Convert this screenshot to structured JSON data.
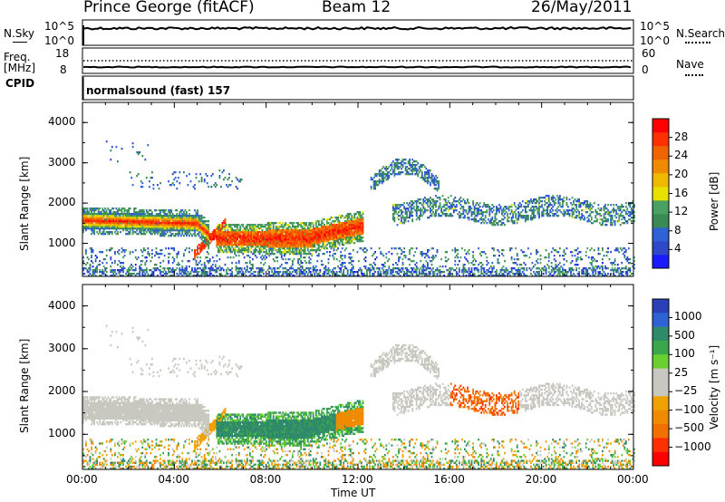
{
  "header": {
    "station": "Prince George (fitACF)",
    "beam": "Beam 12",
    "date": "26/May/2011"
  },
  "nsky_panel": {
    "left_label": "N.Sky",
    "left_ticks": [
      "10^5",
      "10^0"
    ],
    "right_label": "N.Search",
    "right_ticks": [
      "10^5",
      "10^0"
    ]
  },
  "freq_panel": {
    "left_label_1": "Freq.",
    "left_label_2": "[MHz]",
    "left_ticks": [
      "18",
      "8"
    ],
    "right_label": "Nave",
    "right_ticks": [
      "60",
      "0"
    ]
  },
  "cpid_panel": {
    "label": "CPID",
    "mode": "normalsound (fast) 157"
  },
  "chart_data": [
    {
      "type": "heatmap",
      "name": "power",
      "ylabel": "Slant Range [km]",
      "yticks": [
        "1000",
        "2000",
        "3000",
        "4000"
      ],
      "ylim": [
        180,
        4500
      ],
      "xticks": [
        "00:00",
        "04:00",
        "08:00",
        "12:00",
        "16:00",
        "20:00",
        "00:00"
      ],
      "xlim_hours": [
        0,
        24
      ],
      "colorbar": {
        "label": "Power [dB]",
        "ticks": [
          "4",
          "8",
          "12",
          "16",
          "20",
          "24",
          "28"
        ],
        "colors": [
          "#1a1aff",
          "#2f48c8",
          "#2f62d4",
          "#3a8a55",
          "#4aa060",
          "#e8e000",
          "#f0b800",
          "#f08a00",
          "#f06400",
          "#ff3000",
          "#ff0000"
        ]
      }
    },
    {
      "type": "heatmap",
      "name": "velocity",
      "ylabel": "Slant Range [km]",
      "yticks": [
        "1000",
        "2000",
        "3000",
        "4000"
      ],
      "ylim": [
        180,
        4500
      ],
      "xticks": [
        "00:00",
        "04:00",
        "08:00",
        "12:00",
        "16:00",
        "20:00",
        "00:00"
      ],
      "xlim_hours": [
        0,
        24
      ],
      "xlabel": "Time UT",
      "colorbar": {
        "label": "Velocity [m s⁻¹]",
        "ticks": [
          "1000",
          "500",
          "100",
          "25",
          "−25",
          "−100",
          "−500",
          "−1000"
        ],
        "colors": [
          "#2a3fb8",
          "#2f62d4",
          "#2f8a6a",
          "#3aa84a",
          "#6ad030",
          "#c8c8c0",
          "#c8c8c0",
          "#f0a000",
          "#f08a00",
          "#f07000",
          "#ff3000",
          "#ff0000"
        ]
      }
    }
  ]
}
